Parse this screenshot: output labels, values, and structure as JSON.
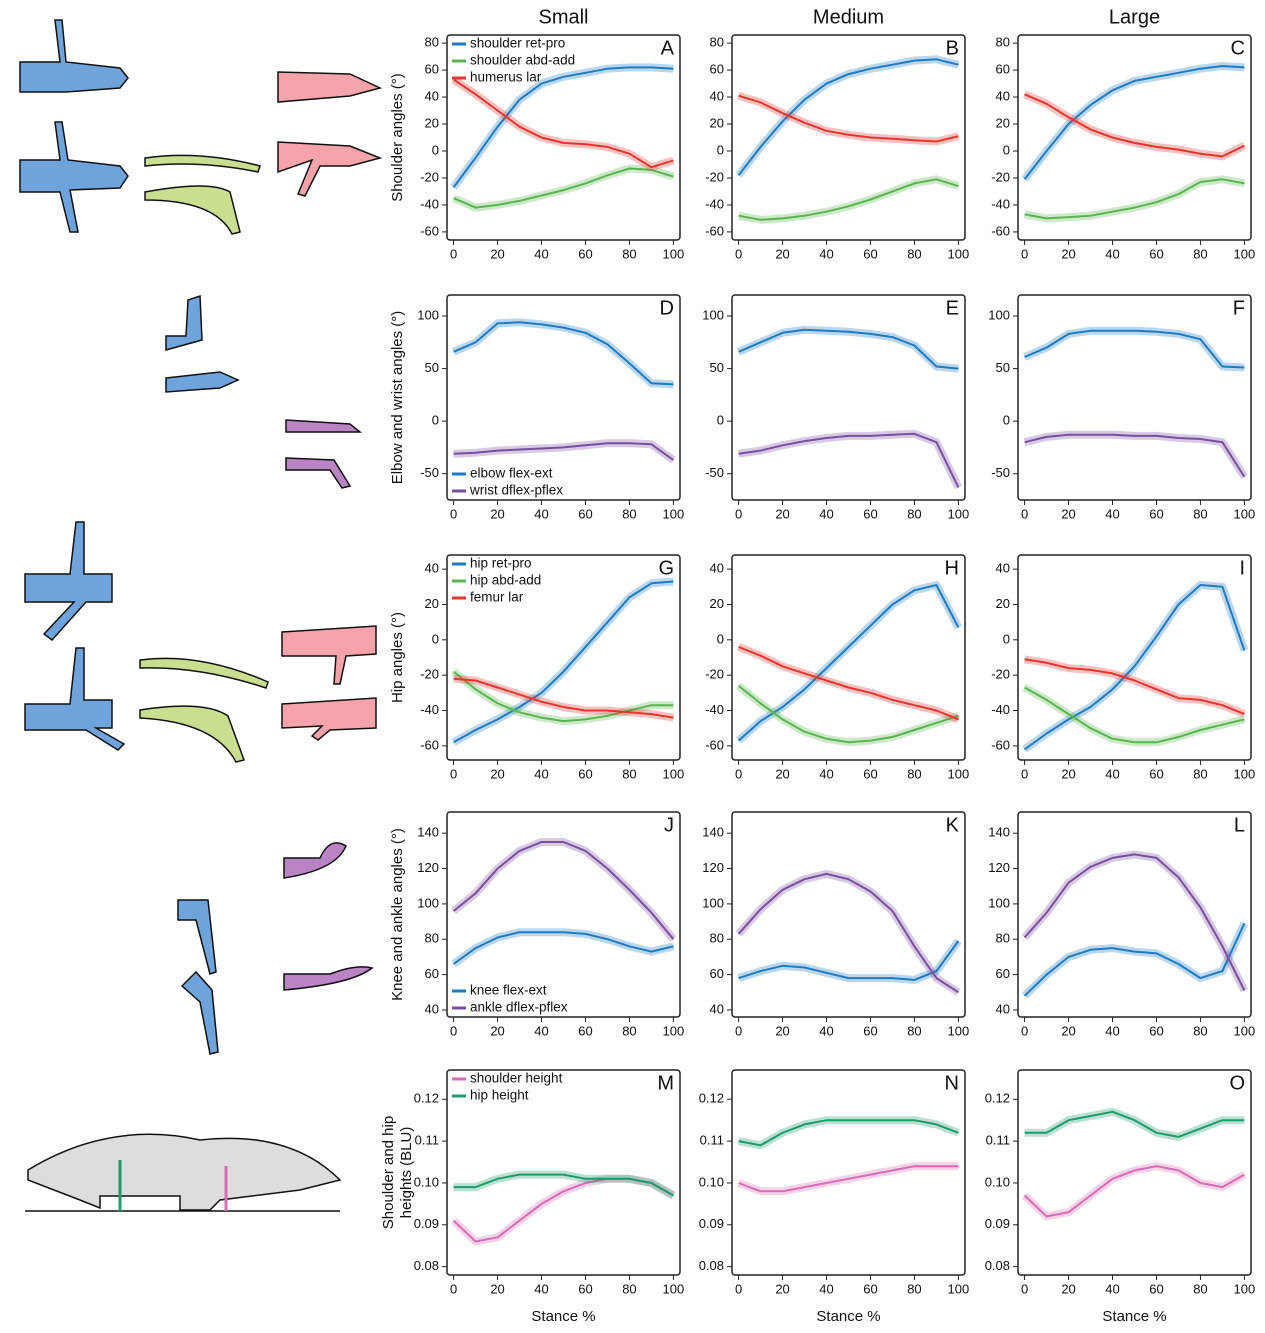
{
  "chart_data": [
    {
      "type": "line",
      "title": "Small",
      "panel": "A",
      "ylabel": [
        "Shoulder angles (°)"
      ],
      "legend": "upper left",
      "x": [
        0,
        10,
        20,
        30,
        40,
        50,
        60,
        70,
        80,
        90,
        100
      ],
      "xlim": [
        -3,
        103
      ],
      "xticks": [
        0,
        20,
        40,
        60,
        80,
        100
      ],
      "ylim": [
        -66,
        86
      ],
      "yticks": [
        -60,
        -40,
        -20,
        0,
        20,
        40,
        60,
        80
      ],
      "series": [
        {
          "name": "shoulder ret-pro",
          "color": "#1f7bc2",
          "values": [
            -27,
            -5,
            18,
            38,
            50,
            55,
            58,
            61,
            62,
            62,
            61
          ]
        },
        {
          "name": "shoulder abd-add",
          "color": "#5ab550",
          "values": [
            -35,
            -42,
            -40,
            -37,
            -33,
            -29,
            -24,
            -18,
            -13,
            -14,
            -19
          ]
        },
        {
          "name": "humerus lar",
          "color": "#e8362e",
          "values": [
            53,
            42,
            30,
            18,
            10,
            6,
            5,
            3,
            -2,
            -12,
            -7
          ]
        }
      ]
    },
    {
      "type": "line",
      "title": "Medium",
      "panel": "B",
      "x": [
        0,
        10,
        20,
        30,
        40,
        50,
        60,
        70,
        80,
        90,
        100
      ],
      "xlim": [
        -3,
        103
      ],
      "xticks": [
        0,
        20,
        40,
        60,
        80,
        100
      ],
      "ylim": [
        -66,
        86
      ],
      "yticks": [
        -60,
        -40,
        -20,
        0,
        20,
        40,
        60,
        80
      ],
      "series": [
        {
          "color": "#1f7bc2",
          "values": [
            -18,
            3,
            22,
            38,
            50,
            57,
            61,
            64,
            67,
            68,
            64
          ]
        },
        {
          "color": "#5ab550",
          "values": [
            -48,
            -51,
            -50,
            -48,
            -45,
            -41,
            -36,
            -30,
            -24,
            -21,
            -26
          ]
        },
        {
          "color": "#e8362e",
          "values": [
            41,
            36,
            28,
            21,
            15,
            12,
            10,
            9,
            8,
            7,
            11
          ]
        }
      ]
    },
    {
      "type": "line",
      "title": "Large",
      "panel": "C",
      "x": [
        0,
        10,
        20,
        30,
        40,
        50,
        60,
        70,
        80,
        90,
        100
      ],
      "xlim": [
        -3,
        103
      ],
      "xticks": [
        0,
        20,
        40,
        60,
        80,
        100
      ],
      "ylim": [
        -66,
        86
      ],
      "yticks": [
        -60,
        -40,
        -20,
        0,
        20,
        40,
        60,
        80
      ],
      "series": [
        {
          "color": "#1f7bc2",
          "values": [
            -21,
            0,
            20,
            34,
            45,
            52,
            55,
            58,
            61,
            63,
            62
          ]
        },
        {
          "color": "#5ab550",
          "values": [
            -47,
            -50,
            -49,
            -48,
            -45,
            -42,
            -38,
            -32,
            -23,
            -21,
            -24
          ]
        },
        {
          "color": "#e8362e",
          "values": [
            42,
            35,
            25,
            16,
            10,
            6,
            3,
            1,
            -2,
            -4,
            4
          ]
        }
      ]
    },
    {
      "type": "line",
      "panel": "D",
      "ylabel": [
        "Elbow and wrist angles (°)"
      ],
      "legend": "lower left",
      "x": [
        0,
        10,
        20,
        30,
        40,
        50,
        60,
        70,
        80,
        90,
        100
      ],
      "xlim": [
        -3,
        103
      ],
      "xticks": [
        0,
        20,
        40,
        60,
        80,
        100
      ],
      "ylim": [
        -75,
        120
      ],
      "yticks": [
        -50,
        0,
        50,
        100
      ],
      "series": [
        {
          "name": "elbow flex-ext",
          "color": "#1f7bc2",
          "values": [
            66,
            75,
            93,
            94,
            92,
            89,
            84,
            73,
            55,
            36,
            35
          ]
        },
        {
          "name": "wrist dflex-pflex",
          "color": "#7b4fa0",
          "values": [
            -31,
            -30,
            -28,
            -27,
            -26,
            -25,
            -23,
            -21,
            -21,
            -22,
            -37
          ]
        }
      ]
    },
    {
      "type": "line",
      "panel": "E",
      "x": [
        0,
        10,
        20,
        30,
        40,
        50,
        60,
        70,
        80,
        90,
        100
      ],
      "xlim": [
        -3,
        103
      ],
      "xticks": [
        0,
        20,
        40,
        60,
        80,
        100
      ],
      "ylim": [
        -75,
        120
      ],
      "yticks": [
        -50,
        0,
        50,
        100
      ],
      "series": [
        {
          "color": "#1f7bc2",
          "values": [
            66,
            75,
            84,
            87,
            86,
            85,
            83,
            80,
            72,
            52,
            50
          ]
        },
        {
          "color": "#7b4fa0",
          "values": [
            -31,
            -28,
            -23,
            -19,
            -16,
            -14,
            -14,
            -13,
            -12,
            -20,
            -63
          ]
        }
      ]
    },
    {
      "type": "line",
      "panel": "F",
      "x": [
        0,
        10,
        20,
        30,
        40,
        50,
        60,
        70,
        80,
        90,
        100
      ],
      "xlim": [
        -3,
        103
      ],
      "xticks": [
        0,
        20,
        40,
        60,
        80,
        100
      ],
      "ylim": [
        -75,
        120
      ],
      "yticks": [
        -50,
        0,
        50,
        100
      ],
      "series": [
        {
          "color": "#1f7bc2",
          "values": [
            61,
            70,
            83,
            86,
            86,
            86,
            85,
            83,
            78,
            52,
            51
          ]
        },
        {
          "color": "#7b4fa0",
          "values": [
            -20,
            -15,
            -13,
            -13,
            -13,
            -14,
            -14,
            -16,
            -17,
            -20,
            -53
          ]
        }
      ]
    },
    {
      "type": "line",
      "panel": "G",
      "ylabel": [
        "Hip angles (°)"
      ],
      "legend": "upper left",
      "x": [
        0,
        10,
        20,
        30,
        40,
        50,
        60,
        70,
        80,
        90,
        100
      ],
      "xlim": [
        -3,
        103
      ],
      "xticks": [
        0,
        20,
        40,
        60,
        80,
        100
      ],
      "ylim": [
        -68,
        48
      ],
      "yticks": [
        -60,
        -40,
        -20,
        0,
        20,
        40
      ],
      "series": [
        {
          "name": "hip ret-pro",
          "color": "#1f7bc2",
          "values": [
            -58,
            -51,
            -45,
            -38,
            -30,
            -18,
            -4,
            10,
            24,
            32,
            33
          ]
        },
        {
          "name": "hip abd-add",
          "color": "#5ab550",
          "values": [
            -18,
            -28,
            -36,
            -41,
            -44,
            -46,
            -45,
            -43,
            -40,
            -37,
            -37
          ]
        },
        {
          "name": "femur lar",
          "color": "#e8362e",
          "values": [
            -22,
            -23,
            -27,
            -31,
            -35,
            -38,
            -40,
            -40,
            -41,
            -42,
            -44
          ]
        }
      ]
    },
    {
      "type": "line",
      "panel": "H",
      "x": [
        0,
        10,
        20,
        30,
        40,
        50,
        60,
        70,
        80,
        90,
        100
      ],
      "xlim": [
        -3,
        103
      ],
      "xticks": [
        0,
        20,
        40,
        60,
        80,
        100
      ],
      "ylim": [
        -68,
        48
      ],
      "yticks": [
        -60,
        -40,
        -20,
        0,
        20,
        40
      ],
      "series": [
        {
          "color": "#1f7bc2",
          "values": [
            -57,
            -46,
            -38,
            -28,
            -16,
            -4,
            8,
            20,
            28,
            31,
            7
          ]
        },
        {
          "color": "#5ab550",
          "values": [
            -26,
            -36,
            -45,
            -52,
            -56,
            -58,
            -57,
            -55,
            -51,
            -47,
            -43
          ]
        },
        {
          "color": "#e8362e",
          "values": [
            -4,
            -9,
            -15,
            -19,
            -23,
            -27,
            -30,
            -34,
            -37,
            -40,
            -45
          ]
        }
      ]
    },
    {
      "type": "line",
      "panel": "I",
      "x": [
        0,
        10,
        20,
        30,
        40,
        50,
        60,
        70,
        80,
        90,
        100
      ],
      "xlim": [
        -3,
        103
      ],
      "xticks": [
        0,
        20,
        40,
        60,
        80,
        100
      ],
      "ylim": [
        -68,
        48
      ],
      "yticks": [
        -60,
        -40,
        -20,
        0,
        20,
        40
      ],
      "series": [
        {
          "color": "#1f7bc2",
          "values": [
            -62,
            -53,
            -45,
            -38,
            -28,
            -15,
            2,
            20,
            31,
            30,
            -6
          ]
        },
        {
          "color": "#5ab550",
          "values": [
            -27,
            -34,
            -42,
            -50,
            -56,
            -58,
            -58,
            -55,
            -51,
            -48,
            -45
          ]
        },
        {
          "color": "#e8362e",
          "values": [
            -11,
            -13,
            -16,
            -17,
            -19,
            -23,
            -28,
            -33,
            -34,
            -37,
            -42
          ]
        }
      ]
    },
    {
      "type": "line",
      "panel": "J",
      "ylabel": [
        "Knee and ankle angles (°)"
      ],
      "legend": "lower left",
      "x": [
        0,
        10,
        20,
        30,
        40,
        50,
        60,
        70,
        80,
        90,
        100
      ],
      "xlim": [
        -3,
        103
      ],
      "xticks": [
        0,
        20,
        40,
        60,
        80,
        100
      ],
      "ylim": [
        36,
        152
      ],
      "yticks": [
        40,
        60,
        80,
        100,
        120,
        140
      ],
      "series": [
        {
          "name": "knee flex-ext",
          "color": "#1f7bc2",
          "values": [
            66,
            75,
            81,
            84,
            84,
            84,
            83,
            80,
            76,
            73,
            76
          ]
        },
        {
          "name": "ankle dflex-pflex",
          "color": "#7b4fa0",
          "values": [
            96,
            106,
            120,
            130,
            135,
            135,
            130,
            120,
            108,
            95,
            80
          ]
        }
      ]
    },
    {
      "type": "line",
      "panel": "K",
      "x": [
        0,
        10,
        20,
        30,
        40,
        50,
        60,
        70,
        80,
        90,
        100
      ],
      "xlim": [
        -3,
        103
      ],
      "xticks": [
        0,
        20,
        40,
        60,
        80,
        100
      ],
      "ylim": [
        36,
        152
      ],
      "yticks": [
        40,
        60,
        80,
        100,
        120,
        140
      ],
      "series": [
        {
          "color": "#1f7bc2",
          "values": [
            58,
            62,
            65,
            64,
            61,
            58,
            58,
            58,
            57,
            62,
            79
          ]
        },
        {
          "color": "#7b4fa0",
          "values": [
            83,
            97,
            108,
            114,
            117,
            114,
            107,
            96,
            76,
            58,
            50
          ]
        }
      ]
    },
    {
      "type": "line",
      "panel": "L",
      "x": [
        0,
        10,
        20,
        30,
        40,
        50,
        60,
        70,
        80,
        90,
        100
      ],
      "xlim": [
        -3,
        103
      ],
      "xticks": [
        0,
        20,
        40,
        60,
        80,
        100
      ],
      "ylim": [
        36,
        152
      ],
      "yticks": [
        40,
        60,
        80,
        100,
        120,
        140
      ],
      "series": [
        {
          "color": "#1f7bc2",
          "values": [
            48,
            60,
            70,
            74,
            75,
            73,
            72,
            66,
            58,
            62,
            89
          ]
        },
        {
          "color": "#7b4fa0",
          "values": [
            81,
            95,
            112,
            121,
            126,
            128,
            126,
            115,
            98,
            76,
            51
          ]
        }
      ]
    },
    {
      "type": "line",
      "panel": "M",
      "ylabel": [
        "Shoulder and hip",
        "heights (BLU)"
      ],
      "xlabel": "Stance %",
      "legend": "upper left",
      "x": [
        0,
        10,
        20,
        30,
        40,
        50,
        60,
        70,
        80,
        90,
        100
      ],
      "xlim": [
        -3,
        103
      ],
      "xticks": [
        0,
        20,
        40,
        60,
        80,
        100
      ],
      "ylim": [
        0.078,
        0.127
      ],
      "yticks": [
        0.08,
        0.09,
        {
          "value": 0.1,
          "label": "0.10"
        },
        0.11,
        0.12
      ],
      "series": [
        {
          "name": "shoulder height",
          "color": "#d96cb5",
          "values": [
            0.091,
            0.086,
            0.087,
            0.091,
            0.095,
            0.098,
            0.1,
            0.101,
            0.101,
            0.1,
            0.097
          ]
        },
        {
          "name": "hip height",
          "color": "#1e9b6a",
          "values": [
            0.099,
            0.099,
            0.101,
            0.102,
            0.102,
            0.102,
            0.101,
            0.101,
            0.101,
            0.1,
            0.097
          ]
        }
      ]
    },
    {
      "type": "line",
      "panel": "N",
      "xlabel": "Stance %",
      "x": [
        0,
        10,
        20,
        30,
        40,
        50,
        60,
        70,
        80,
        90,
        100
      ],
      "xlim": [
        -3,
        103
      ],
      "xticks": [
        0,
        20,
        40,
        60,
        80,
        100
      ],
      "ylim": [
        0.078,
        0.127
      ],
      "yticks": [
        0.08,
        0.09,
        {
          "value": 0.1,
          "label": "0.10"
        },
        0.11,
        0.12
      ],
      "series": [
        {
          "color": "#d96cb5",
          "values": [
            0.1,
            0.098,
            0.098,
            0.099,
            0.1,
            0.101,
            0.102,
            0.103,
            0.104,
            0.104,
            0.104
          ]
        },
        {
          "color": "#1e9b6a",
          "values": [
            0.11,
            0.109,
            0.112,
            0.114,
            0.115,
            0.115,
            0.115,
            0.115,
            0.115,
            0.114,
            0.112
          ]
        }
      ]
    },
    {
      "type": "line",
      "panel": "O",
      "xlabel": "Stance %",
      "x": [
        0,
        10,
        20,
        30,
        40,
        50,
        60,
        70,
        80,
        90,
        100
      ],
      "xlim": [
        -3,
        103
      ],
      "xticks": [
        0,
        20,
        40,
        60,
        80,
        100
      ],
      "ylim": [
        0.078,
        0.127
      ],
      "yticks": [
        0.08,
        0.09,
        {
          "value": 0.1,
          "label": "0.10"
        },
        0.11,
        0.12
      ],
      "series": [
        {
          "color": "#d96cb5",
          "values": [
            0.097,
            0.092,
            0.093,
            0.097,
            0.101,
            0.103,
            0.104,
            0.103,
            0.1,
            0.099,
            0.102
          ]
        },
        {
          "color": "#1e9b6a",
          "values": [
            0.112,
            0.112,
            0.115,
            0.116,
            0.117,
            0.115,
            0.112,
            0.111,
            0.113,
            0.115,
            0.115
          ]
        }
      ]
    }
  ]
}
